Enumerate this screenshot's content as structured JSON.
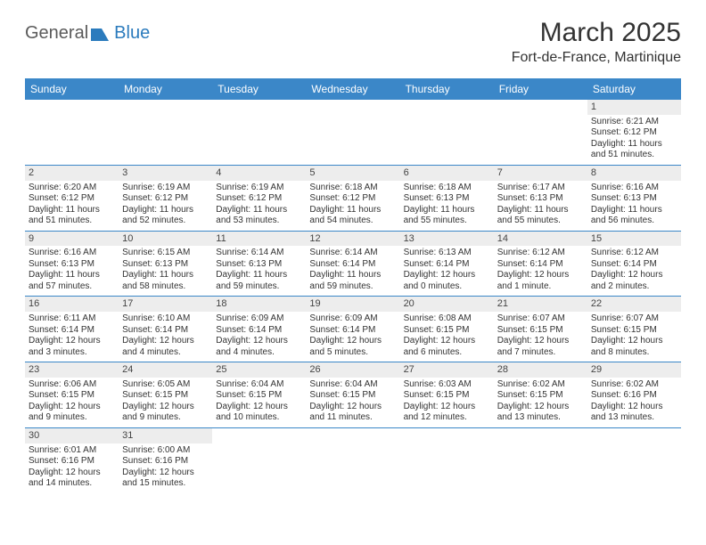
{
  "logo": {
    "text1": "General",
    "text2": "Blue"
  },
  "title": "March 2025",
  "location": "Fort-de-France, Martinique",
  "header_bg": "#3b87c8",
  "number_bg": "#ededed",
  "border_color": "#3b87c8",
  "day_names": [
    "Sunday",
    "Monday",
    "Tuesday",
    "Wednesday",
    "Thursday",
    "Friday",
    "Saturday"
  ],
  "weeks": [
    [
      null,
      null,
      null,
      null,
      null,
      null,
      {
        "n": "1",
        "sr": "Sunrise: 6:21 AM",
        "ss": "Sunset: 6:12 PM",
        "dl": "Daylight: 11 hours and 51 minutes."
      }
    ],
    [
      {
        "n": "2",
        "sr": "Sunrise: 6:20 AM",
        "ss": "Sunset: 6:12 PM",
        "dl": "Daylight: 11 hours and 51 minutes."
      },
      {
        "n": "3",
        "sr": "Sunrise: 6:19 AM",
        "ss": "Sunset: 6:12 PM",
        "dl": "Daylight: 11 hours and 52 minutes."
      },
      {
        "n": "4",
        "sr": "Sunrise: 6:19 AM",
        "ss": "Sunset: 6:12 PM",
        "dl": "Daylight: 11 hours and 53 minutes."
      },
      {
        "n": "5",
        "sr": "Sunrise: 6:18 AM",
        "ss": "Sunset: 6:12 PM",
        "dl": "Daylight: 11 hours and 54 minutes."
      },
      {
        "n": "6",
        "sr": "Sunrise: 6:18 AM",
        "ss": "Sunset: 6:13 PM",
        "dl": "Daylight: 11 hours and 55 minutes."
      },
      {
        "n": "7",
        "sr": "Sunrise: 6:17 AM",
        "ss": "Sunset: 6:13 PM",
        "dl": "Daylight: 11 hours and 55 minutes."
      },
      {
        "n": "8",
        "sr": "Sunrise: 6:16 AM",
        "ss": "Sunset: 6:13 PM",
        "dl": "Daylight: 11 hours and 56 minutes."
      }
    ],
    [
      {
        "n": "9",
        "sr": "Sunrise: 6:16 AM",
        "ss": "Sunset: 6:13 PM",
        "dl": "Daylight: 11 hours and 57 minutes."
      },
      {
        "n": "10",
        "sr": "Sunrise: 6:15 AM",
        "ss": "Sunset: 6:13 PM",
        "dl": "Daylight: 11 hours and 58 minutes."
      },
      {
        "n": "11",
        "sr": "Sunrise: 6:14 AM",
        "ss": "Sunset: 6:13 PM",
        "dl": "Daylight: 11 hours and 59 minutes."
      },
      {
        "n": "12",
        "sr": "Sunrise: 6:14 AM",
        "ss": "Sunset: 6:14 PM",
        "dl": "Daylight: 11 hours and 59 minutes."
      },
      {
        "n": "13",
        "sr": "Sunrise: 6:13 AM",
        "ss": "Sunset: 6:14 PM",
        "dl": "Daylight: 12 hours and 0 minutes."
      },
      {
        "n": "14",
        "sr": "Sunrise: 6:12 AM",
        "ss": "Sunset: 6:14 PM",
        "dl": "Daylight: 12 hours and 1 minute."
      },
      {
        "n": "15",
        "sr": "Sunrise: 6:12 AM",
        "ss": "Sunset: 6:14 PM",
        "dl": "Daylight: 12 hours and 2 minutes."
      }
    ],
    [
      {
        "n": "16",
        "sr": "Sunrise: 6:11 AM",
        "ss": "Sunset: 6:14 PM",
        "dl": "Daylight: 12 hours and 3 minutes."
      },
      {
        "n": "17",
        "sr": "Sunrise: 6:10 AM",
        "ss": "Sunset: 6:14 PM",
        "dl": "Daylight: 12 hours and 4 minutes."
      },
      {
        "n": "18",
        "sr": "Sunrise: 6:09 AM",
        "ss": "Sunset: 6:14 PM",
        "dl": "Daylight: 12 hours and 4 minutes."
      },
      {
        "n": "19",
        "sr": "Sunrise: 6:09 AM",
        "ss": "Sunset: 6:14 PM",
        "dl": "Daylight: 12 hours and 5 minutes."
      },
      {
        "n": "20",
        "sr": "Sunrise: 6:08 AM",
        "ss": "Sunset: 6:15 PM",
        "dl": "Daylight: 12 hours and 6 minutes."
      },
      {
        "n": "21",
        "sr": "Sunrise: 6:07 AM",
        "ss": "Sunset: 6:15 PM",
        "dl": "Daylight: 12 hours and 7 minutes."
      },
      {
        "n": "22",
        "sr": "Sunrise: 6:07 AM",
        "ss": "Sunset: 6:15 PM",
        "dl": "Daylight: 12 hours and 8 minutes."
      }
    ],
    [
      {
        "n": "23",
        "sr": "Sunrise: 6:06 AM",
        "ss": "Sunset: 6:15 PM",
        "dl": "Daylight: 12 hours and 9 minutes."
      },
      {
        "n": "24",
        "sr": "Sunrise: 6:05 AM",
        "ss": "Sunset: 6:15 PM",
        "dl": "Daylight: 12 hours and 9 minutes."
      },
      {
        "n": "25",
        "sr": "Sunrise: 6:04 AM",
        "ss": "Sunset: 6:15 PM",
        "dl": "Daylight: 12 hours and 10 minutes."
      },
      {
        "n": "26",
        "sr": "Sunrise: 6:04 AM",
        "ss": "Sunset: 6:15 PM",
        "dl": "Daylight: 12 hours and 11 minutes."
      },
      {
        "n": "27",
        "sr": "Sunrise: 6:03 AM",
        "ss": "Sunset: 6:15 PM",
        "dl": "Daylight: 12 hours and 12 minutes."
      },
      {
        "n": "28",
        "sr": "Sunrise: 6:02 AM",
        "ss": "Sunset: 6:15 PM",
        "dl": "Daylight: 12 hours and 13 minutes."
      },
      {
        "n": "29",
        "sr": "Sunrise: 6:02 AM",
        "ss": "Sunset: 6:16 PM",
        "dl": "Daylight: 12 hours and 13 minutes."
      }
    ],
    [
      {
        "n": "30",
        "sr": "Sunrise: 6:01 AM",
        "ss": "Sunset: 6:16 PM",
        "dl": "Daylight: 12 hours and 14 minutes."
      },
      {
        "n": "31",
        "sr": "Sunrise: 6:00 AM",
        "ss": "Sunset: 6:16 PM",
        "dl": "Daylight: 12 hours and 15 minutes."
      },
      null,
      null,
      null,
      null,
      null
    ]
  ]
}
